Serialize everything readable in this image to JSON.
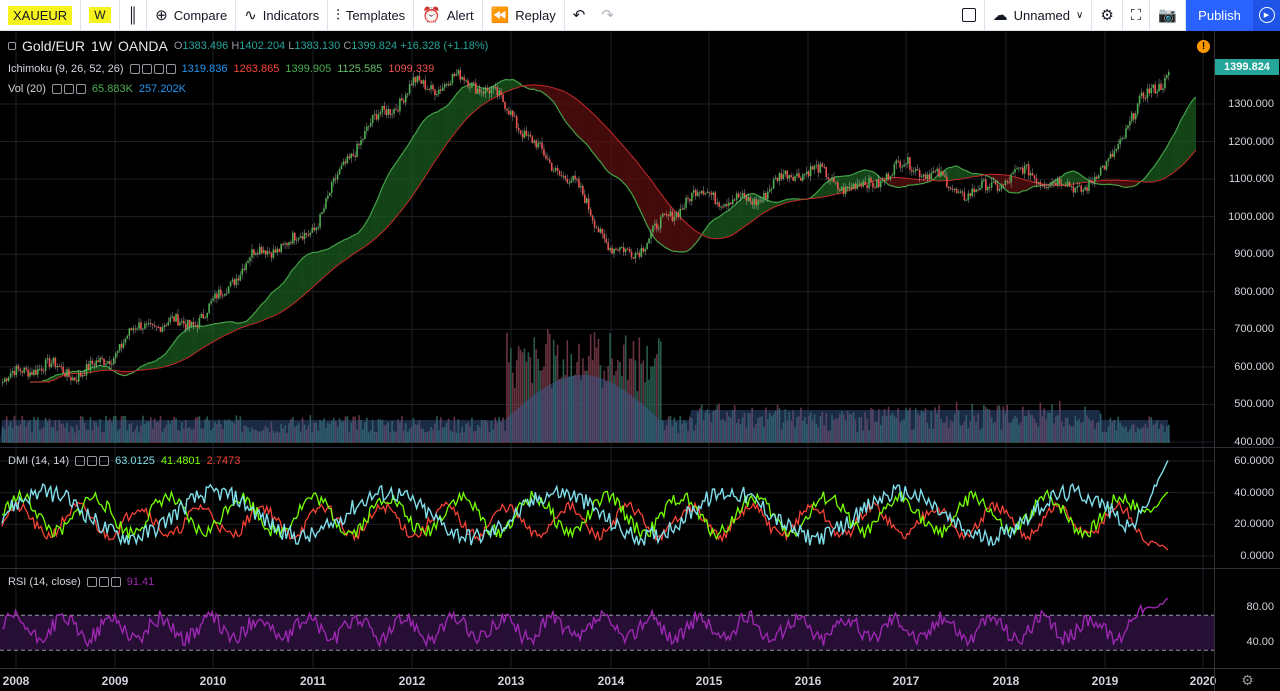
{
  "toolbar": {
    "symbol": "XAUEUR",
    "interval": "W",
    "compare_label": "Compare",
    "indicators_label": "Indicators",
    "templates_label": "Templates",
    "alert_label": "Alert",
    "replay_label": "Replay",
    "layout_name": "Unnamed",
    "publish_label": "Publish"
  },
  "main": {
    "title": "Gold/EUR",
    "interval": "1W",
    "exchange": "OANDA",
    "ohlc": {
      "o_label": "O",
      "o": "1383.496",
      "h_label": "H",
      "h": "1402.204",
      "l_label": "L",
      "l": "1383.130",
      "c_label": "C",
      "c": "1399.824",
      "change": "+16.328 (+1.18%)"
    },
    "last_price": "1399.824",
    "last_price_value": 1399.824,
    "price_axis": [
      "1300.000",
      "1200.000",
      "1100.000",
      "1000.000",
      "900.000",
      "800.000",
      "700.000",
      "600.000",
      "500.000",
      "400.000"
    ],
    "price_values": [
      1300,
      1200,
      1100,
      1000,
      900,
      800,
      700,
      600,
      500,
      400
    ]
  },
  "indicators": {
    "ichimoku": {
      "label": "Ichimoku (9, 26, 52, 26)",
      "values": [
        "1319.836",
        "1263.865",
        "1399.905",
        "1125.585",
        "1099.339"
      ],
      "colors": [
        "#2196f3",
        "#f44336",
        "#4caf50",
        "#2e7d32",
        "#c62828"
      ]
    },
    "volume": {
      "label": "Vol (20)",
      "values": [
        "65.883K",
        "257.202K"
      ],
      "colors": [
        "#4caf50",
        "#2196f3"
      ]
    },
    "dmi": {
      "label": "DMI (14, 14)",
      "values": [
        "63.0125",
        "41.4801",
        "2.7473"
      ],
      "colors": [
        "#80deea",
        "#4caf50",
        "#f44336"
      ],
      "axis": [
        "60.0000",
        "40.0000",
        "20.0000",
        "0.0000"
      ],
      "axis_values": [
        60,
        40,
        20,
        0
      ]
    },
    "rsi": {
      "label": "RSI (14, close)",
      "value": "91.41",
      "color": "#9c27b0",
      "axis": [
        "80.00",
        "40.00"
      ],
      "axis_values": [
        80,
        40
      ]
    }
  },
  "time_axis": [
    "2008",
    "2009",
    "2010",
    "2011",
    "2012",
    "2013",
    "2014",
    "2015",
    "2016",
    "2017",
    "2018",
    "2019",
    "2020"
  ],
  "colors": {
    "up": "#26a69a",
    "down": "#ef5350",
    "cloud_up": "#1b5e20",
    "cloud_down": "#5d1010",
    "rsi": "#9c27b0",
    "dmi_adx": "#80deea",
    "dmi_plus": "#76ff03",
    "dmi_minus": "#f44336",
    "accent": "#2962ff",
    "symbol_highlight": "#f7f31e"
  },
  "chart_data": {
    "type": "line",
    "x": [
      "2008",
      "2009",
      "2010",
      "2011",
      "2012",
      "2013",
      "2014",
      "2015",
      "2016",
      "2017",
      "2018",
      "2019",
      "2019-08"
    ],
    "series": [
      {
        "name": "Gold/EUR",
        "values": [
          560,
          640,
          780,
          1000,
          1380,
          1300,
          910,
          1050,
          1100,
          1110,
          1080,
          1120,
          1400
        ]
      }
    ],
    "ylabel": "",
    "ylim": [
      400,
      1420
    ]
  }
}
